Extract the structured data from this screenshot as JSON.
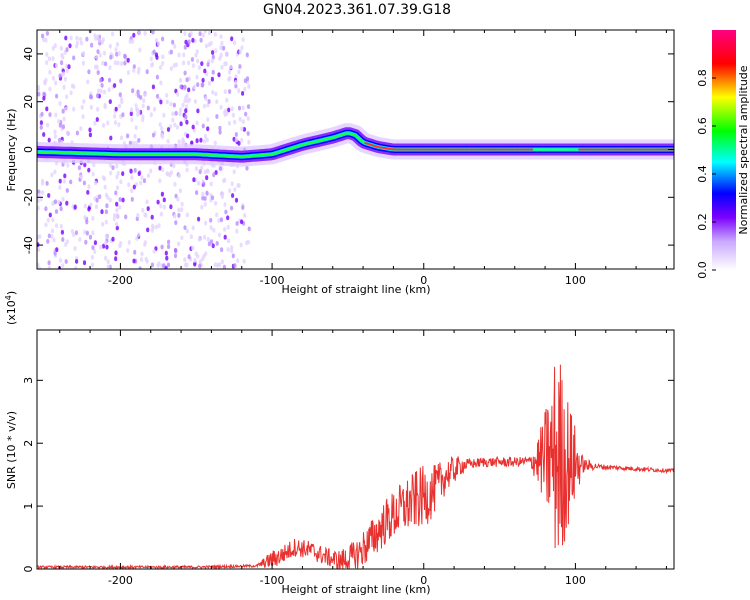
{
  "figure": {
    "title": "GN04.2023.361.07.39.G18"
  },
  "chart_data": [
    {
      "type": "heatmap",
      "xlabel": "Height of straight line (km)",
      "ylabel": "Frequency (Hz)",
      "xlim": [
        -255,
        165
      ],
      "ylim": [
        -50,
        50
      ],
      "xticks": [
        -200,
        -100,
        0,
        100
      ],
      "yticks": [
        -40,
        -20,
        0,
        20,
        40
      ],
      "xtick_labels": [
        "-200",
        "-100",
        "0",
        "100"
      ],
      "ytick_labels": [
        "-40",
        "-20",
        "0",
        "20",
        "40"
      ],
      "colorbar": {
        "label": "Normalized spectral amplitude",
        "range": [
          0,
          1
        ],
        "ticks": [
          0.0,
          0.2,
          0.4,
          0.6,
          0.8
        ],
        "tick_labels": [
          "0.0",
          "0.2",
          "0.4",
          "0.6",
          "0.8"
        ],
        "colors": [
          "#ffffff",
          "#7b00ff",
          "#0000ff",
          "#00ffff",
          "#00ff00",
          "#ffff00",
          "#ff0000",
          "#ff0080"
        ]
      },
      "ridge": {
        "x": [
          -255,
          -200,
          -150,
          -120,
          -100,
          -80,
          -60,
          -50,
          -45,
          -40,
          -30,
          -20,
          0,
          70,
          100,
          165
        ],
        "y": [
          -1,
          -2,
          -2,
          -3,
          -2,
          2,
          5,
          7,
          6,
          3,
          1,
          0,
          0,
          0,
          0,
          0
        ]
      }
    },
    {
      "type": "line",
      "xlabel": "Height of straight line (km)",
      "ylabel": "SNR (10 * v/v)",
      "multiplier": "(x10",
      "multiplier_exp": "4",
      "multiplier_close": ")",
      "xlim": [
        -255,
        165
      ],
      "ylim": [
        0,
        3.8
      ],
      "xticks": [
        -200,
        -100,
        0,
        100
      ],
      "yticks": [
        0,
        1,
        2,
        3
      ],
      "xtick_labels": [
        "-200",
        "-100",
        "0",
        "100"
      ],
      "ytick_labels": [
        "0",
        "1",
        "2",
        "3"
      ],
      "color": "#e8312f",
      "envelope": {
        "x": [
          -255,
          -150,
          -110,
          -95,
          -85,
          -75,
          -65,
          -55,
          -45,
          -35,
          -25,
          -15,
          -5,
          5,
          15,
          25,
          40,
          60,
          75,
          82,
          88,
          92,
          98,
          105,
          120,
          165
        ],
        "y": [
          0.03,
          0.03,
          0.05,
          0.2,
          0.35,
          0.3,
          0.2,
          0.12,
          0.2,
          0.45,
          0.75,
          0.95,
          1.1,
          1.2,
          1.5,
          1.65,
          1.7,
          1.7,
          1.72,
          1.75,
          1.8,
          1.72,
          1.68,
          1.65,
          1.62,
          1.56
        ]
      },
      "oscillation": {
        "x": [
          -255,
          -110,
          -100,
          -60,
          -40,
          0,
          10,
          30,
          70,
          78,
          84,
          88,
          93,
          100,
          105,
          115,
          165
        ],
        "amp": [
          0.02,
          0.02,
          0.15,
          0.15,
          0.3,
          0.5,
          0.35,
          0.08,
          0.08,
          0.6,
          1.2,
          1.9,
          1.3,
          0.6,
          0.12,
          0.04,
          0.03
        ]
      }
    }
  ]
}
